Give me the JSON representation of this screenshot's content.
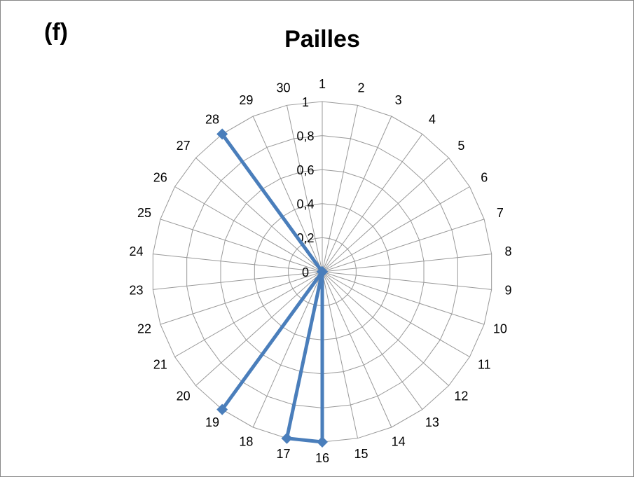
{
  "chart_data": {
    "type": "radar",
    "title": "Pailles",
    "annotation": "(f)",
    "categories": [
      "1",
      "2",
      "3",
      "4",
      "5",
      "6",
      "7",
      "8",
      "9",
      "10",
      "11",
      "12",
      "13",
      "14",
      "15",
      "16",
      "17",
      "18",
      "19",
      "20",
      "21",
      "22",
      "23",
      "24",
      "25",
      "26",
      "27",
      "28",
      "29",
      "30"
    ],
    "series": [
      {
        "name": "Pailles",
        "color": "#4a7ebb",
        "values": [
          0,
          0,
          0,
          0,
          0,
          0,
          0,
          0,
          0,
          0,
          0,
          0,
          0,
          0,
          0,
          1,
          1,
          0,
          1,
          0,
          0,
          0,
          0,
          0,
          0,
          0,
          0,
          1,
          0,
          0
        ]
      }
    ],
    "rlim": [
      0,
      1
    ],
    "rticks": [
      0,
      {
        "value": 0.2,
        "label": "0,2"
      },
      {
        "value": 0.4,
        "label": "0,4"
      },
      {
        "value": 0.6,
        "label": "0,6"
      },
      {
        "value": 0.8,
        "label": "0,8"
      },
      1
    ],
    "grid": true
  }
}
